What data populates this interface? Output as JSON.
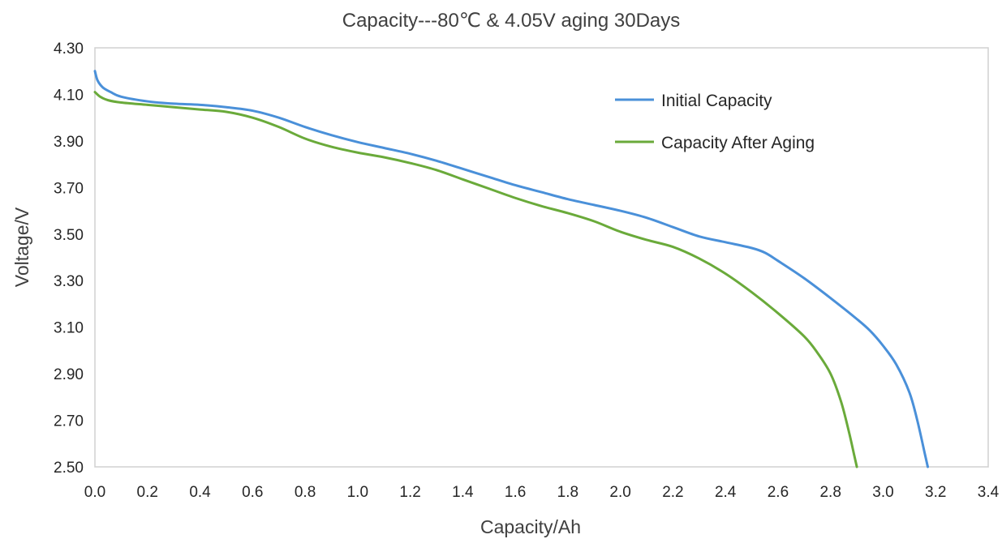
{
  "chart_data": {
    "type": "line",
    "title": "Capacity---80℃ & 4.05V aging  30Days",
    "xlabel": "Capacity/Ah",
    "ylabel": "Voltage/V",
    "xlim": [
      0,
      3.4
    ],
    "ylim": [
      2.5,
      4.3
    ],
    "x_ticks": [
      "0.0",
      "0.2",
      "0.4",
      "0.6",
      "0.8",
      "1.0",
      "1.2",
      "1.4",
      "1.6",
      "1.8",
      "2.0",
      "2.2",
      "2.4",
      "2.6",
      "2.8",
      "3.0",
      "3.2",
      "3.4"
    ],
    "y_ticks": [
      "2.50",
      "2.70",
      "2.90",
      "3.10",
      "3.30",
      "3.50",
      "3.70",
      "3.90",
      "4.10",
      "4.30"
    ],
    "grid": false,
    "legend_position": "top-right",
    "series": [
      {
        "name": "Initial Capacity",
        "color": "#4a90d9",
        "points": [
          [
            0.0,
            4.2
          ],
          [
            0.01,
            4.16
          ],
          [
            0.03,
            4.13
          ],
          [
            0.06,
            4.11
          ],
          [
            0.1,
            4.09
          ],
          [
            0.2,
            4.07
          ],
          [
            0.3,
            4.06
          ],
          [
            0.4,
            4.055
          ],
          [
            0.5,
            4.045
          ],
          [
            0.6,
            4.03
          ],
          [
            0.7,
            4.0
          ],
          [
            0.8,
            3.96
          ],
          [
            0.9,
            3.925
          ],
          [
            1.0,
            3.895
          ],
          [
            1.1,
            3.87
          ],
          [
            1.2,
            3.845
          ],
          [
            1.3,
            3.815
          ],
          [
            1.4,
            3.78
          ],
          [
            1.5,
            3.745
          ],
          [
            1.6,
            3.71
          ],
          [
            1.7,
            3.68
          ],
          [
            1.8,
            3.65
          ],
          [
            1.9,
            3.625
          ],
          [
            2.0,
            3.6
          ],
          [
            2.1,
            3.57
          ],
          [
            2.2,
            3.53
          ],
          [
            2.3,
            3.49
          ],
          [
            2.4,
            3.465
          ],
          [
            2.5,
            3.44
          ],
          [
            2.55,
            3.42
          ],
          [
            2.6,
            3.385
          ],
          [
            2.7,
            3.31
          ],
          [
            2.8,
            3.225
          ],
          [
            2.9,
            3.135
          ],
          [
            2.95,
            3.085
          ],
          [
            3.0,
            3.02
          ],
          [
            3.05,
            2.94
          ],
          [
            3.1,
            2.82
          ],
          [
            3.13,
            2.7
          ],
          [
            3.16,
            2.55
          ],
          [
            3.17,
            2.5
          ]
        ]
      },
      {
        "name": "Capacity After Aging",
        "color": "#6aaa3a",
        "points": [
          [
            0.0,
            4.11
          ],
          [
            0.02,
            4.09
          ],
          [
            0.05,
            4.075
          ],
          [
            0.1,
            4.065
          ],
          [
            0.2,
            4.055
          ],
          [
            0.3,
            4.045
          ],
          [
            0.4,
            4.035
          ],
          [
            0.5,
            4.025
          ],
          [
            0.6,
            4.0
          ],
          [
            0.7,
            3.96
          ],
          [
            0.8,
            3.91
          ],
          [
            0.9,
            3.875
          ],
          [
            1.0,
            3.85
          ],
          [
            1.1,
            3.83
          ],
          [
            1.2,
            3.805
          ],
          [
            1.3,
            3.775
          ],
          [
            1.4,
            3.735
          ],
          [
            1.5,
            3.695
          ],
          [
            1.6,
            3.655
          ],
          [
            1.7,
            3.62
          ],
          [
            1.8,
            3.59
          ],
          [
            1.9,
            3.555
          ],
          [
            2.0,
            3.51
          ],
          [
            2.1,
            3.475
          ],
          [
            2.2,
            3.445
          ],
          [
            2.3,
            3.395
          ],
          [
            2.4,
            3.33
          ],
          [
            2.5,
            3.25
          ],
          [
            2.6,
            3.16
          ],
          [
            2.7,
            3.06
          ],
          [
            2.75,
            2.99
          ],
          [
            2.8,
            2.9
          ],
          [
            2.84,
            2.78
          ],
          [
            2.87,
            2.65
          ],
          [
            2.89,
            2.55
          ],
          [
            2.9,
            2.5
          ]
        ]
      }
    ]
  }
}
